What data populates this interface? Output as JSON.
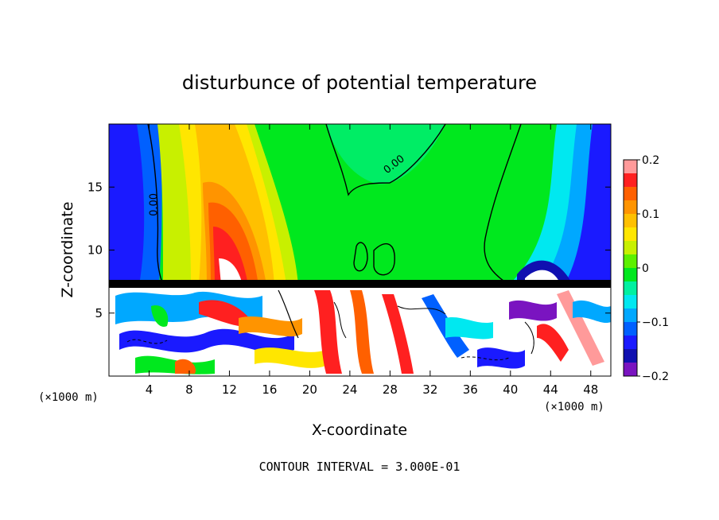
{
  "chart_data": {
    "type": "heatmap",
    "title": "disturbunce of potential temperature",
    "xlabel": "X-coordinate",
    "ylabel": "Z-coordinate",
    "x_unit_left": "(×1000 m)",
    "x_unit_right": "(×1000 m)",
    "footer": "CONTOUR INTERVAL = 3.000E-01",
    "xlim": [
      0,
      50
    ],
    "ylim": [
      0,
      20
    ],
    "x_ticks": [
      4,
      8,
      12,
      16,
      20,
      24,
      28,
      32,
      36,
      40,
      44,
      48
    ],
    "y_ticks": [
      5,
      10,
      15
    ],
    "contour_labels": [
      {
        "text": "0.00",
        "x": 4.8,
        "z": 13.6
      },
      {
        "text": "0.00",
        "x": 28.6,
        "z": 16.6
      }
    ],
    "colorbar": {
      "min": -0.2,
      "max": 0.2,
      "ticks": [
        0.2,
        0.1,
        0,
        -0.1,
        -0.2
      ],
      "colors": [
        "#ff9a9a",
        "#ff2020",
        "#ff6000",
        "#ff9400",
        "#ffc000",
        "#ffe600",
        "#c8f000",
        "#5cf000",
        "#00e81e",
        "#00f0a0",
        "#00e8f0",
        "#00a8ff",
        "#0060ff",
        "#1a1aff",
        "#1010b0",
        "#7a14c0"
      ]
    }
  }
}
